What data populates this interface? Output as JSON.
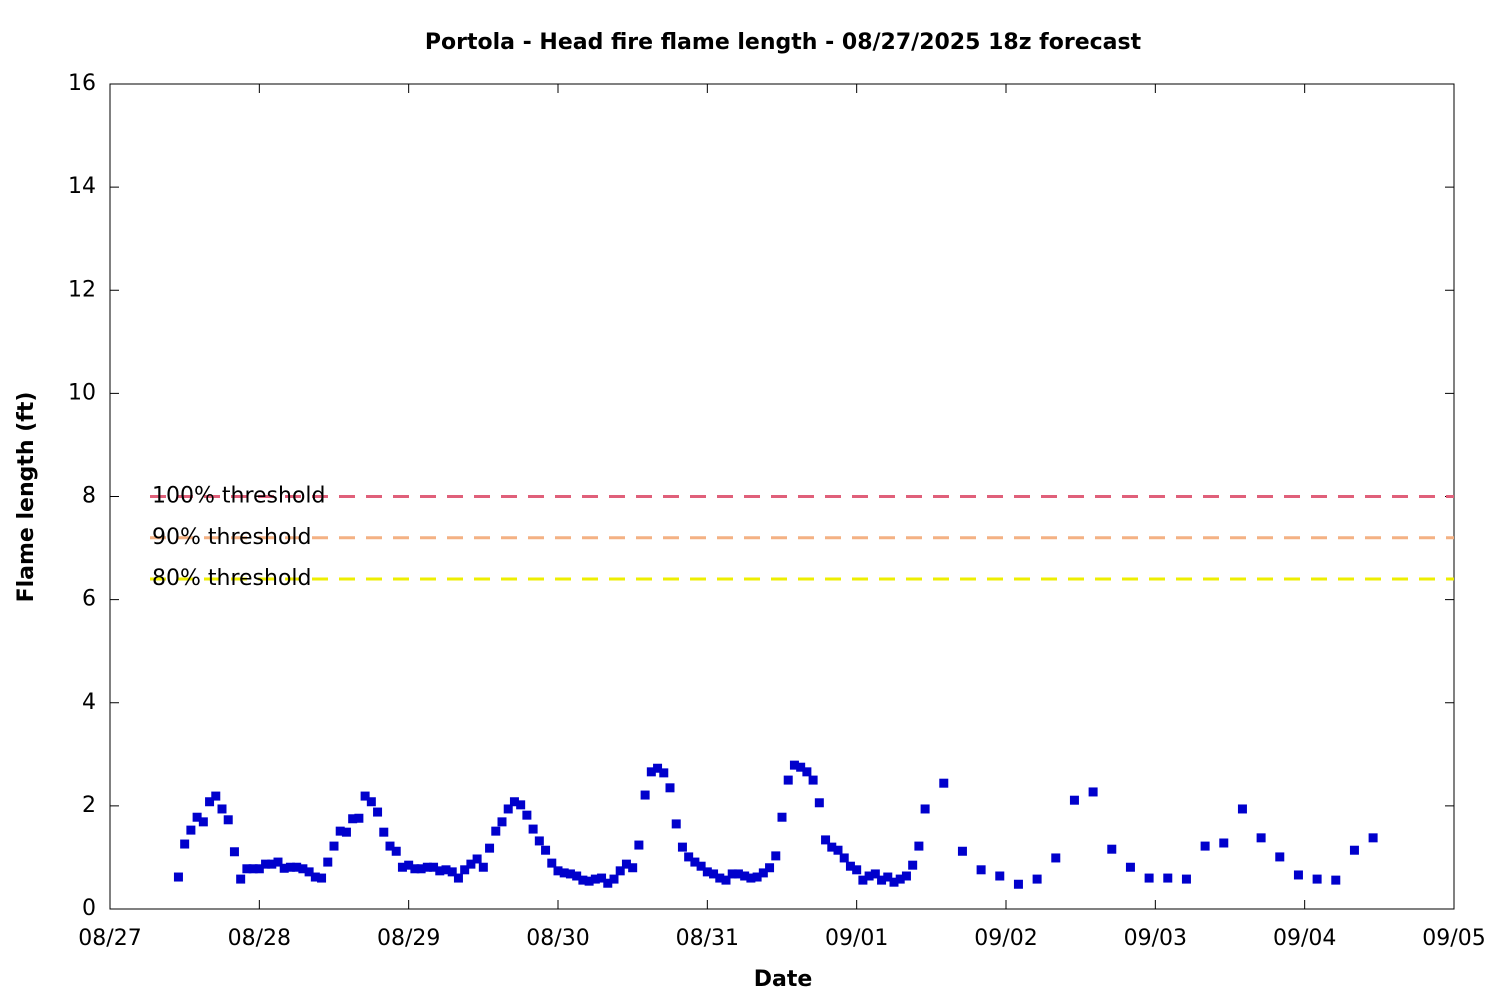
{
  "chart_data": {
    "type": "scatter",
    "title": "Portola - Head fire flame length - 08/27/2025 18z forecast",
    "x_label": "Date",
    "y_label": "Flame length (ft)",
    "color": "#0000cc",
    "x": [
      11,
      12,
      13,
      14,
      15,
      16,
      17,
      18,
      19,
      20,
      21,
      22,
      23,
      24,
      25,
      26,
      27,
      28,
      29,
      30,
      31,
      32,
      33,
      34,
      35,
      36,
      37,
      38,
      39,
      40,
      41,
      42,
      43,
      44,
      45,
      46,
      47,
      48,
      49,
      50,
      51,
      52,
      53,
      54,
      55,
      56,
      57,
      58,
      59,
      60,
      61,
      62,
      63,
      64,
      65,
      66,
      67,
      68,
      69,
      70,
      71,
      72,
      73,
      74,
      75,
      76,
      77,
      78,
      79,
      80,
      81,
      82,
      83,
      84,
      85,
      86,
      87,
      88,
      89,
      90,
      91,
      92,
      93,
      94,
      95,
      96,
      97,
      98,
      99,
      100,
      101,
      102,
      103,
      104,
      105,
      106,
      107,
      108,
      109,
      110,
      111,
      112,
      113,
      114,
      115,
      116,
      117,
      118,
      119,
      120,
      121,
      122,
      123,
      124,
      125,
      126,
      127,
      128,
      129,
      130,
      131,
      134,
      137,
      140,
      143,
      146,
      149,
      152,
      155,
      158,
      161,
      164,
      167,
      170,
      173,
      176,
      179,
      182,
      185,
      188,
      191,
      194,
      197,
      200,
      203
    ],
    "values": [
      0.62,
      1.26,
      1.53,
      1.78,
      1.69,
      2.08,
      2.19,
      1.94,
      1.73,
      1.11,
      0.58,
      0.78,
      0.78,
      0.78,
      0.87,
      0.87,
      0.91,
      0.79,
      0.81,
      0.81,
      0.78,
      0.72,
      0.62,
      0.6,
      0.91,
      1.22,
      1.51,
      1.49,
      1.75,
      1.76,
      2.19,
      2.08,
      1.88,
      1.49,
      1.22,
      1.12,
      0.81,
      0.85,
      0.78,
      0.78,
      0.81,
      0.81,
      0.74,
      0.76,
      0.72,
      0.6,
      0.76,
      0.87,
      0.97,
      0.81,
      1.18,
      1.51,
      1.69,
      1.94,
      2.08,
      2.02,
      1.82,
      1.55,
      1.32,
      1.14,
      0.89,
      0.74,
      0.7,
      0.68,
      0.64,
      0.56,
      0.54,
      0.58,
      0.6,
      0.5,
      0.58,
      0.74,
      0.87,
      0.8,
      1.24,
      2.21,
      2.66,
      2.73,
      2.64,
      2.35,
      1.65,
      1.2,
      1.01,
      0.91,
      0.83,
      0.72,
      0.68,
      0.6,
      0.56,
      0.68,
      0.68,
      0.64,
      0.6,
      0.62,
      0.7,
      0.8,
      1.03,
      1.78,
      2.5,
      2.79,
      2.75,
      2.66,
      2.5,
      2.06,
      1.34,
      1.2,
      1.14,
      0.99,
      0.83,
      0.76,
      0.56,
      0.64,
      0.68,
      0.56,
      0.62,
      0.52,
      0.58,
      0.64,
      0.85,
      1.22,
      1.94,
      2.44,
      1.12,
      0.76,
      0.64,
      0.48,
      0.58,
      0.99,
      2.11,
      2.27,
      1.16,
      0.81,
      0.6,
      0.6,
      0.58,
      1.22,
      1.28,
      1.94,
      1.38,
      1.01,
      0.66,
      0.58,
      0.56,
      1.14,
      1.38
    ],
    "xlim": [
      0,
      216
    ],
    "xticks": [
      {
        "value": 0,
        "label": "08/27"
      },
      {
        "value": 24,
        "label": "08/28"
      },
      {
        "value": 48,
        "label": "08/29"
      },
      {
        "value": 72,
        "label": "08/30"
      },
      {
        "value": 96,
        "label": "08/31"
      },
      {
        "value": 120,
        "label": "09/01"
      },
      {
        "value": 144,
        "label": "09/02"
      },
      {
        "value": 168,
        "label": "09/03"
      },
      {
        "value": 192,
        "label": "09/04"
      },
      {
        "value": 216,
        "label": "09/05"
      }
    ],
    "ylim": [
      0,
      16
    ],
    "yticks": [
      0,
      2,
      4,
      6,
      8,
      10,
      12,
      14,
      16
    ],
    "thresholds": [
      {
        "label": "100% threshold",
        "value": 8,
        "color": "#e0607a"
      },
      {
        "label": "90% threshold",
        "value": 7.2,
        "color": "#f4b183"
      },
      {
        "label": "80% threshold",
        "value": 6.4,
        "color": "#eeee00"
      }
    ]
  }
}
